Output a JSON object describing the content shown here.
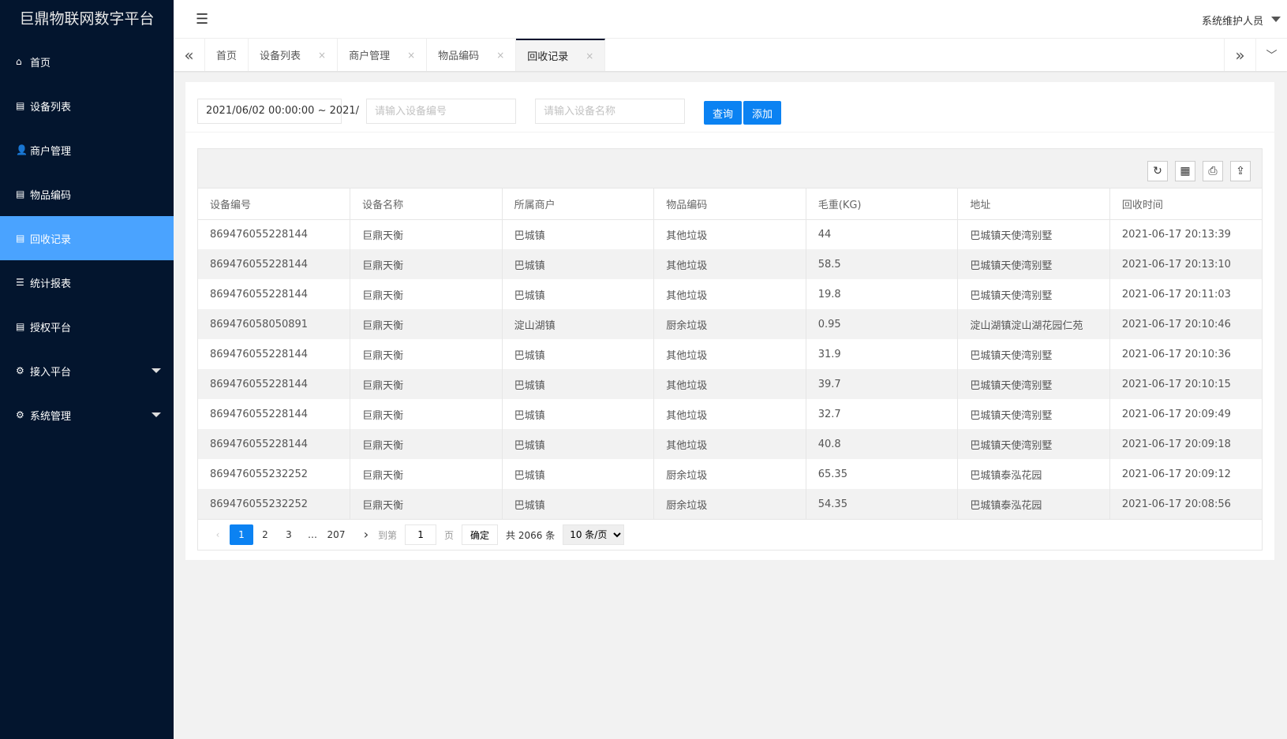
{
  "app": {
    "title": "巨鼎物联网数字平台",
    "user": "系统维护人员"
  },
  "sidebar": {
    "items": [
      {
        "label": "首页",
        "icon": "⌂",
        "name": "home"
      },
      {
        "label": "设备列表",
        "icon": "▤",
        "name": "devices"
      },
      {
        "label": "商户管理",
        "icon": "👤",
        "name": "merchants"
      },
      {
        "label": "物品编码",
        "icon": "▤",
        "name": "codes"
      },
      {
        "label": "回收记录",
        "icon": "▤",
        "name": "recycle",
        "active": true
      },
      {
        "label": "统计报表",
        "icon": "☰",
        "name": "stats"
      },
      {
        "label": "授权平台",
        "icon": "▤",
        "name": "auth"
      },
      {
        "label": "接入平台",
        "icon": "⚙",
        "name": "access",
        "expandable": true
      },
      {
        "label": "系统管理",
        "icon": "⚙",
        "name": "system",
        "expandable": true
      }
    ]
  },
  "tabs": [
    {
      "label": "首页",
      "closable": false
    },
    {
      "label": "设备列表",
      "closable": true
    },
    {
      "label": "商户管理",
      "closable": true
    },
    {
      "label": "物品编码",
      "closable": true
    },
    {
      "label": "回收记录",
      "closable": true,
      "active": true
    }
  ],
  "filter": {
    "date_range": "2021/06/02 00:00:00 ~ 2021/",
    "device_no_placeholder": "请输入设备编号",
    "device_name_placeholder": "请输入设备名称",
    "search_label": "查询",
    "add_label": "添加"
  },
  "table": {
    "columns": [
      "设备编号",
      "设备名称",
      "所属商户",
      "物品编码",
      "毛重(KG)",
      "地址",
      "回收时间"
    ],
    "rows": [
      [
        "869476055228144",
        "巨鼎天衡",
        "巴城镇",
        "其他垃圾",
        "44",
        "巴城镇天使湾别墅",
        "2021-06-17 20:13:39"
      ],
      [
        "869476055228144",
        "巨鼎天衡",
        "巴城镇",
        "其他垃圾",
        "58.5",
        "巴城镇天使湾别墅",
        "2021-06-17 20:13:10"
      ],
      [
        "869476055228144",
        "巨鼎天衡",
        "巴城镇",
        "其他垃圾",
        "19.8",
        "巴城镇天使湾别墅",
        "2021-06-17 20:11:03"
      ],
      [
        "869476058050891",
        "巨鼎天衡",
        "淀山湖镇",
        "厨余垃圾",
        "0.95",
        "淀山湖镇淀山湖花园仁苑",
        "2021-06-17 20:10:46"
      ],
      [
        "869476055228144",
        "巨鼎天衡",
        "巴城镇",
        "其他垃圾",
        "31.9",
        "巴城镇天使湾别墅",
        "2021-06-17 20:10:36"
      ],
      [
        "869476055228144",
        "巨鼎天衡",
        "巴城镇",
        "其他垃圾",
        "39.7",
        "巴城镇天使湾别墅",
        "2021-06-17 20:10:15"
      ],
      [
        "869476055228144",
        "巨鼎天衡",
        "巴城镇",
        "其他垃圾",
        "32.7",
        "巴城镇天使湾别墅",
        "2021-06-17 20:09:49"
      ],
      [
        "869476055228144",
        "巨鼎天衡",
        "巴城镇",
        "其他垃圾",
        "40.8",
        "巴城镇天使湾别墅",
        "2021-06-17 20:09:18"
      ],
      [
        "869476055232252",
        "巨鼎天衡",
        "巴城镇",
        "厨余垃圾",
        "65.35",
        "巴城镇泰泓花园",
        "2021-06-17 20:09:12"
      ],
      [
        "869476055232252",
        "巨鼎天衡",
        "巴城镇",
        "厨余垃圾",
        "54.35",
        "巴城镇泰泓花园",
        "2021-06-17 20:08:56"
      ]
    ]
  },
  "pager": {
    "pages": [
      "1",
      "2",
      "3"
    ],
    "ellipsis": "…",
    "last": "207",
    "goto_label": "到第",
    "goto_value": "1",
    "page_unit": "页",
    "confirm_label": "确定",
    "total": "共 2066 条",
    "page_size": "10 条/页"
  },
  "colors": {
    "sidebar": "#03152e",
    "active": "#4aa3ff",
    "primary": "#0b82f2"
  }
}
